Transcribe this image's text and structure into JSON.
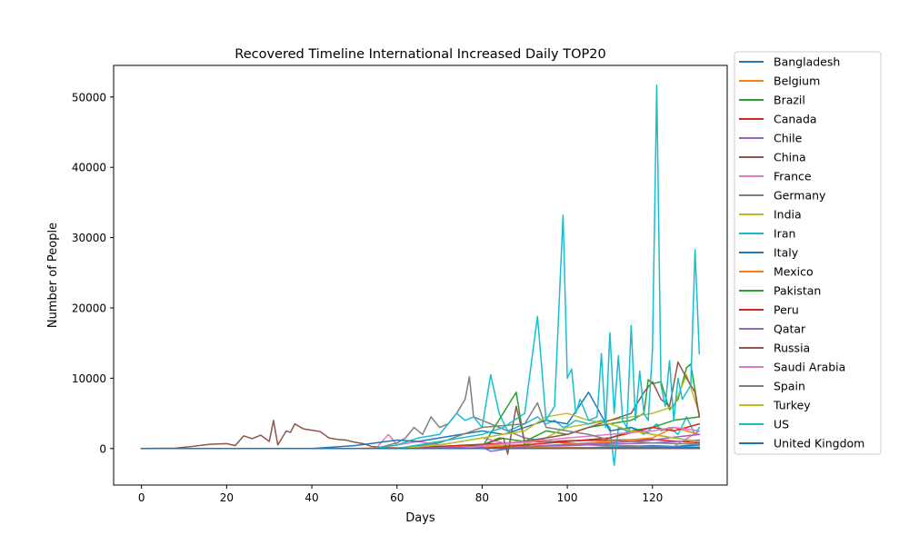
{
  "chart_data": {
    "type": "line",
    "title": "Recovered Timeline International Increased Daily TOP20",
    "xlabel": "Days",
    "ylabel": "Number of People",
    "xlim": [
      -6.55,
      137.55
    ],
    "ylim": [
      -5200,
      54500
    ],
    "xticks": [
      0,
      20,
      40,
      60,
      80,
      100,
      120
    ],
    "yticks": [
      0,
      10000,
      20000,
      30000,
      40000,
      50000
    ],
    "grid": false,
    "legend_position": "outside-right",
    "series": [
      {
        "name": "Bangladesh",
        "color": "#1f77b4",
        "x": [
          0,
          60,
          80,
          90,
          100,
          110,
          120,
          125,
          131
        ],
        "y": [
          0,
          0,
          0,
          0,
          0,
          200,
          400,
          300,
          500
        ]
      },
      {
        "name": "Belgium",
        "color": "#ff7f0e",
        "x": [
          0,
          50,
          60,
          70,
          80,
          90,
          100,
          110,
          120,
          131
        ],
        "y": [
          0,
          0,
          100,
          250,
          200,
          150,
          150,
          100,
          150,
          100
        ]
      },
      {
        "name": "Brazil",
        "color": "#2ca02c",
        "x": [
          0,
          60,
          70,
          80,
          84,
          90,
          95,
          100,
          105,
          110,
          115,
          118,
          119,
          120,
          122,
          124,
          126,
          128,
          129,
          131
        ],
        "y": [
          0,
          0,
          200,
          500,
          1500,
          1000,
          2500,
          2000,
          3000,
          3500,
          4000,
          5000,
          9800,
          9200,
          9500,
          5500,
          7000,
          11500,
          12000,
          4500
        ]
      },
      {
        "name": "Canada",
        "color": "#d62728",
        "x": [
          0,
          50,
          60,
          70,
          80,
          90,
          100,
          110,
          120,
          131
        ],
        "y": [
          0,
          0,
          50,
          300,
          600,
          900,
          1100,
          1200,
          1300,
          800
        ]
      },
      {
        "name": "Chile",
        "color": "#9467bd",
        "x": [
          0,
          70,
          80,
          90,
          100,
          110,
          120,
          131
        ],
        "y": [
          0,
          0,
          100,
          300,
          400,
          600,
          800,
          1200
        ]
      },
      {
        "name": "China",
        "color": "#8c564b",
        "x": [
          0,
          8,
          12,
          16,
          20,
          22,
          24,
          26,
          28,
          30,
          31,
          32,
          34,
          35,
          36,
          38,
          40,
          42,
          44,
          46,
          48,
          50,
          52,
          54,
          56,
          58,
          60,
          65,
          70,
          131
        ],
        "y": [
          0,
          50,
          300,
          600,
          700,
          400,
          1800,
          1400,
          1900,
          1000,
          4000,
          500,
          2500,
          2300,
          3500,
          2800,
          2600,
          2400,
          1500,
          1300,
          1200,
          900,
          700,
          300,
          200,
          100,
          50,
          20,
          10,
          5
        ]
      },
      {
        "name": "France",
        "color": "#e377c2",
        "x": [
          0,
          55,
          58,
          60,
          65,
          70,
          75,
          80,
          85,
          90,
          95,
          100,
          105,
          110,
          115,
          120,
          125,
          131
        ],
        "y": [
          0,
          0,
          2000,
          500,
          1000,
          500,
          1000,
          1500,
          800,
          1000,
          1200,
          700,
          500,
          300,
          400,
          200,
          300,
          2500
        ]
      },
      {
        "name": "Germany",
        "color": "#7f7f7f",
        "x": [
          0,
          55,
          60,
          62,
          64,
          66,
          68,
          70,
          72,
          74,
          76,
          77,
          78,
          80,
          82,
          84,
          86,
          88,
          90,
          95,
          100,
          105,
          110,
          120,
          131
        ],
        "y": [
          0,
          0,
          800,
          1500,
          3000,
          2000,
          4500,
          3000,
          3500,
          5000,
          7000,
          10200,
          4500,
          4000,
          3500,
          3000,
          2500,
          2000,
          1500,
          1000,
          800,
          600,
          400,
          300,
          200
        ]
      },
      {
        "name": "India",
        "color": "#bcbd22",
        "x": [
          0,
          60,
          70,
          80,
          90,
          95,
          98,
          100,
          105,
          110,
          115,
          120,
          125,
          128,
          131
        ],
        "y": [
          0,
          0,
          100,
          300,
          600,
          1500,
          2500,
          3000,
          3500,
          4000,
          4500,
          5000,
          6000,
          10500,
          5000
        ]
      },
      {
        "name": "Iran",
        "color": "#17becf",
        "x": [
          0,
          55,
          60,
          65,
          70,
          72,
          74,
          76,
          78,
          80,
          82,
          84,
          86,
          88,
          90,
          93,
          95,
          97,
          99,
          100,
          102,
          105,
          108,
          110,
          111,
          112,
          114,
          115,
          118,
          121,
          122,
          124,
          126,
          128,
          130,
          131
        ],
        "y": [
          0,
          0,
          500,
          1500,
          2000,
          3500,
          5000,
          4000,
          4500,
          3000,
          10500,
          5000,
          2500,
          3000,
          3500,
          4500,
          3500,
          4000,
          3000,
          3200,
          4000,
          3500,
          4000,
          3000,
          -2400,
          3000,
          2500,
          3000,
          2000,
          3500,
          2500,
          3000,
          2000,
          4500,
          2000,
          3000
        ]
      },
      {
        "name": "Italy",
        "color": "#1f77b4",
        "x": [
          0,
          40,
          45,
          50,
          55,
          60,
          65,
          70,
          75,
          80,
          85,
          90,
          95,
          100,
          105,
          110,
          115,
          120,
          125,
          131
        ],
        "y": [
          0,
          0,
          200,
          400,
          800,
          1200,
          1000,
          1500,
          2000,
          2500,
          2000,
          3000,
          4000,
          3500,
          8000,
          2500,
          3000,
          2000,
          1500,
          1000
        ]
      },
      {
        "name": "Mexico",
        "color": "#ff7f0e",
        "x": [
          0,
          70,
          80,
          90,
          100,
          110,
          120,
          125,
          131
        ],
        "y": [
          0,
          0,
          100,
          300,
          600,
          1000,
          1500,
          3000,
          2000
        ]
      },
      {
        "name": "Pakistan",
        "color": "#2ca02c",
        "x": [
          0,
          70,
          80,
          88,
          90,
          100,
          110,
          115,
          120,
          125,
          131
        ],
        "y": [
          0,
          0,
          200,
          8000,
          500,
          1000,
          1500,
          2500,
          3000,
          4000,
          4500
        ]
      },
      {
        "name": "Peru",
        "color": "#d62728",
        "x": [
          0,
          80,
          90,
          100,
          110,
          120,
          125,
          131
        ],
        "y": [
          0,
          0,
          500,
          1000,
          1500,
          3000,
          2500,
          3500
        ]
      },
      {
        "name": "Qatar",
        "color": "#9467bd",
        "x": [
          0,
          60,
          70,
          80,
          82,
          90,
          100,
          110,
          120,
          125,
          131
        ],
        "y": [
          0,
          0,
          100,
          200,
          -400,
          300,
          500,
          800,
          1200,
          1600,
          2000
        ]
      },
      {
        "name": "Russia",
        "color": "#8c564b",
        "x": [
          0,
          75,
          80,
          85,
          86,
          88,
          90,
          95,
          100,
          105,
          110,
          115,
          118,
          120,
          122,
          124,
          126,
          128,
          130,
          131
        ],
        "y": [
          0,
          0,
          500,
          1500,
          -800,
          6000,
          1000,
          1500,
          2000,
          3000,
          4000,
          5000,
          8000,
          9500,
          7000,
          6000,
          12300,
          10000,
          8000,
          4500
        ]
      },
      {
        "name": "Saudi Arabia",
        "color": "#e377c2",
        "x": [
          0,
          75,
          80,
          90,
          100,
          110,
          120,
          125,
          131
        ],
        "y": [
          0,
          0,
          400,
          900,
          1500,
          2000,
          2500,
          3000,
          2500
        ]
      },
      {
        "name": "Spain",
        "color": "#7f7f7f",
        "x": [
          0,
          60,
          70,
          80,
          90,
          93,
          95,
          100,
          105,
          110,
          120,
          131
        ],
        "y": [
          0,
          0,
          800,
          3000,
          3500,
          6500,
          3000,
          2500,
          2000,
          1200,
          800,
          600
        ]
      },
      {
        "name": "Turkey",
        "color": "#bcbd22",
        "x": [
          0,
          60,
          70,
          80,
          90,
          95,
          100,
          105,
          110,
          115,
          120,
          125,
          131
        ],
        "y": [
          0,
          0,
          500,
          1500,
          2500,
          4500,
          5000,
          4000,
          3500,
          2500,
          2000,
          1500,
          1000
        ]
      },
      {
        "name": "US",
        "color": "#17becf",
        "x": [
          0,
          60,
          70,
          80,
          85,
          90,
          93,
          95,
          97,
          99,
          100,
          101,
          102,
          103,
          105,
          107,
          108,
          109,
          110,
          111,
          112,
          113,
          114,
          115,
          116,
          117,
          118,
          119,
          120,
          121,
          122,
          123,
          124,
          125,
          126,
          127,
          128,
          129,
          130,
          131
        ],
        "y": [
          0,
          0,
          1000,
          2000,
          3000,
          5000,
          18800,
          4000,
          6000,
          33200,
          10000,
          11300,
          5000,
          7000,
          4000,
          4500,
          13500,
          3000,
          16500,
          5000,
          13200,
          4000,
          3000,
          17500,
          4000,
          11000,
          5000,
          4000,
          14000,
          51700,
          9000,
          6000,
          12500,
          4000,
          10000,
          7000,
          8000,
          9000,
          28300,
          13500
        ]
      },
      {
        "name": "United Kingdom",
        "color": "#1f77b4",
        "x": [
          0,
          60,
          80,
          100,
          110,
          120,
          131
        ],
        "y": [
          0,
          0,
          0,
          50,
          100,
          100,
          150
        ]
      }
    ]
  }
}
